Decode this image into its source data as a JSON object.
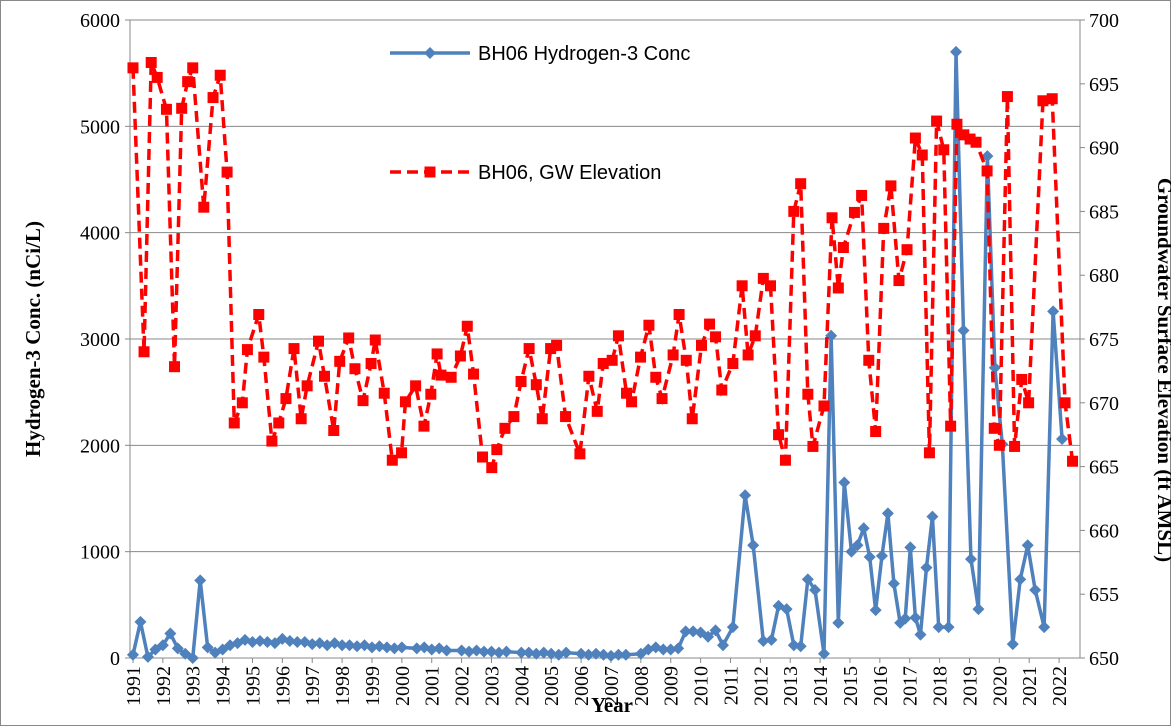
{
  "chart_data": {
    "type": "line",
    "xlabel": "Year",
    "ylabel": "Hydrogen-3 Conc. (nCi/L)",
    "y2label": "Groundwater Surface Elevation (ft AMSL)",
    "xlim": [
      1990.9,
      2022.7
    ],
    "xticks": [
      1991,
      1992,
      1993,
      1994,
      1995,
      1996,
      1997,
      1998,
      1999,
      2000,
      2001,
      2002,
      2003,
      2004,
      2005,
      2006,
      2007,
      2008,
      2009,
      2010,
      2011,
      2012,
      2013,
      2014,
      2015,
      2016,
      2017,
      2018,
      2019,
      2020,
      2021,
      2022
    ],
    "ylim": [
      0,
      6000
    ],
    "yticks": [
      0,
      1000,
      2000,
      3000,
      4000,
      5000,
      6000
    ],
    "y2lim": [
      650,
      700
    ],
    "y2ticks": [
      650,
      655,
      660,
      665,
      670,
      675,
      680,
      685,
      690,
      695,
      700
    ],
    "grid": true,
    "series": [
      {
        "name": "BH06 Hydrogen-3 Conc",
        "color": "#4f81bd",
        "marker": "diamond",
        "dash": false,
        "x": [
          1991.0,
          1991.25,
          1991.5,
          1991.75,
          1992.0,
          1992.25,
          1992.5,
          1992.75,
          1993.0,
          1993.25,
          1993.5,
          1993.75,
          1994.0,
          1994.25,
          1994.5,
          1994.75,
          1995.0,
          1995.25,
          1995.5,
          1995.75,
          1996.0,
          1996.25,
          1996.5,
          1996.75,
          1997.0,
          1997.25,
          1997.5,
          1997.75,
          1998.0,
          1998.25,
          1998.5,
          1998.75,
          1999.0,
          1999.25,
          1999.5,
          1999.75,
          2000.0,
          2000.5,
          2000.75,
          2001.0,
          2001.25,
          2001.5,
          2002.0,
          2002.25,
          2002.5,
          2002.75,
          2003.0,
          2003.25,
          2003.5,
          2004.0,
          2004.25,
          2004.5,
          2004.75,
          2005.0,
          2005.25,
          2005.5,
          2006.0,
          2006.25,
          2006.5,
          2006.75,
          2007.0,
          2007.25,
          2007.5,
          2008.0,
          2008.25,
          2008.5,
          2008.75,
          2009.0,
          2009.25,
          2009.5,
          2009.75,
          2010.0,
          2010.25,
          2010.5,
          2010.75,
          2011.08,
          2011.49,
          2011.76,
          2012.1,
          2012.37,
          2012.61,
          2012.88,
          2013.12,
          2013.35,
          2013.59,
          2013.83,
          2014.13,
          2014.37,
          2014.61,
          2014.81,
          2015.05,
          2015.25,
          2015.46,
          2015.66,
          2015.86,
          2016.07,
          2016.27,
          2016.47,
          2016.68,
          2016.85,
          2017.02,
          2017.19,
          2017.36,
          2017.56,
          2017.76,
          2017.97,
          2018.3,
          2018.55,
          2018.8,
          2019.05,
          2019.3,
          2019.6,
          2019.85,
          2020.1,
          2020.45,
          2020.7,
          2020.95,
          2021.2,
          2021.5,
          2021.8,
          2022.1
        ],
        "values": [
          30,
          340,
          10,
          80,
          120,
          230,
          90,
          40,
          0,
          730,
          100,
          50,
          80,
          120,
          140,
          170,
          150,
          160,
          150,
          140,
          180,
          160,
          150,
          150,
          130,
          140,
          120,
          140,
          120,
          120,
          110,
          120,
          100,
          110,
          100,
          90,
          100,
          90,
          100,
          80,
          90,
          70,
          70,
          60,
          70,
          60,
          60,
          50,
          60,
          50,
          50,
          40,
          50,
          40,
          30,
          50,
          40,
          30,
          40,
          30,
          20,
          30,
          30,
          40,
          80,
          100,
          80,
          80,
          90,
          250,
          250,
          240,
          200,
          260,
          120,
          290,
          1530,
          1060,
          160,
          170,
          490,
          460,
          120,
          110,
          740,
          640,
          40,
          3030,
          330,
          1650,
          1000,
          1060,
          1220,
          950,
          450,
          960,
          1360,
          700,
          330,
          370,
          1040,
          380,
          220,
          850,
          1330,
          290,
          290,
          5700,
          3080,
          930,
          460,
          4720,
          2730,
          2010,
          130,
          740,
          1060,
          640,
          290,
          3260,
          2060
        ]
      },
      {
        "name": "BH06, GW Elevation",
        "color": "#ff0000",
        "marker": "square",
        "dash": true,
        "axis": "y2",
        "x": [
          1991.0,
          1991.37,
          1991.61,
          1991.81,
          1992.12,
          1992.39,
          1992.63,
          1992.83,
          1993.0,
          1993.37,
          1993.68,
          1993.92,
          1994.15,
          1994.39,
          1994.66,
          1994.83,
          1995.21,
          1995.38,
          1995.65,
          1995.88,
          1996.12,
          1996.39,
          1996.63,
          1996.83,
          1997.21,
          1997.41,
          1997.72,
          1997.92,
          1998.22,
          1998.43,
          1998.7,
          1998.97,
          1999.11,
          1999.41,
          1999.68,
          1999.99,
          2000.12,
          2000.46,
          2000.74,
          2000.97,
          2001.18,
          2001.31,
          2001.65,
          2001.96,
          2002.19,
          2002.4,
          2002.7,
          2003.01,
          2003.18,
          2003.45,
          2003.75,
          2003.99,
          2004.26,
          2004.5,
          2004.7,
          2004.98,
          2005.18,
          2005.48,
          2005.96,
          2006.26,
          2006.54,
          2006.74,
          2007.04,
          2007.25,
          2007.52,
          2007.69,
          2007.99,
          2008.27,
          2008.5,
          2008.71,
          2009.08,
          2009.28,
          2009.52,
          2009.72,
          2010.03,
          2010.3,
          2010.5,
          2010.71,
          2011.08,
          2011.39,
          2011.59,
          2011.83,
          2012.1,
          2012.34,
          2012.61,
          2012.84,
          2013.12,
          2013.35,
          2013.59,
          2013.76,
          2014.13,
          2014.4,
          2014.61,
          2014.78,
          2015.15,
          2015.39,
          2015.63,
          2015.86,
          2016.13,
          2016.37,
          2016.64,
          2016.91,
          2017.19,
          2017.42,
          2017.66,
          2017.9,
          2018.14,
          2018.37,
          2018.58,
          2018.81,
          2019.02,
          2019.22,
          2019.59,
          2019.83,
          2020.0,
          2020.27,
          2020.51,
          2020.75,
          2020.98,
          2021.46,
          2021.77,
          2022.2,
          2022.45
        ],
        "values": [
          696.25,
          674.0,
          696.67,
          695.5,
          693.0,
          672.83,
          693.08,
          695.17,
          696.25,
          685.33,
          693.92,
          695.67,
          688.08,
          668.42,
          670.0,
          674.17,
          676.92,
          673.58,
          667.0,
          668.42,
          670.33,
          674.25,
          668.75,
          671.33,
          674.83,
          672.08,
          667.83,
          673.25,
          675.08,
          672.67,
          670.17,
          673.08,
          674.92,
          670.75,
          665.5,
          666.08,
          670.08,
          671.33,
          668.17,
          670.67,
          673.83,
          672.17,
          672.0,
          673.67,
          676.0,
          672.25,
          665.75,
          664.92,
          666.33,
          668.0,
          668.92,
          671.67,
          674.25,
          671.42,
          668.75,
          674.25,
          674.5,
          668.92,
          666.0,
          672.08,
          669.33,
          673.08,
          673.33,
          675.25,
          670.75,
          670.08,
          673.58,
          676.08,
          672.0,
          670.33,
          673.75,
          676.92,
          673.33,
          668.75,
          674.5,
          676.17,
          675.17,
          671.0,
          673.08,
          679.17,
          673.75,
          675.25,
          679.75,
          679.17,
          667.5,
          665.5,
          685.0,
          687.17,
          670.67,
          666.58,
          669.75,
          684.5,
          679.0,
          682.17,
          684.92,
          686.25,
          673.33,
          667.75,
          683.67,
          687.0,
          679.58,
          682.0,
          690.75,
          689.42,
          666.08,
          692.08,
          689.83,
          668.17,
          691.83,
          691.0,
          690.67,
          690.42,
          688.17,
          668.0,
          666.67,
          694.0,
          666.58,
          671.83,
          670.0,
          693.67,
          693.83,
          670.0,
          665.42
        ]
      }
    ]
  }
}
